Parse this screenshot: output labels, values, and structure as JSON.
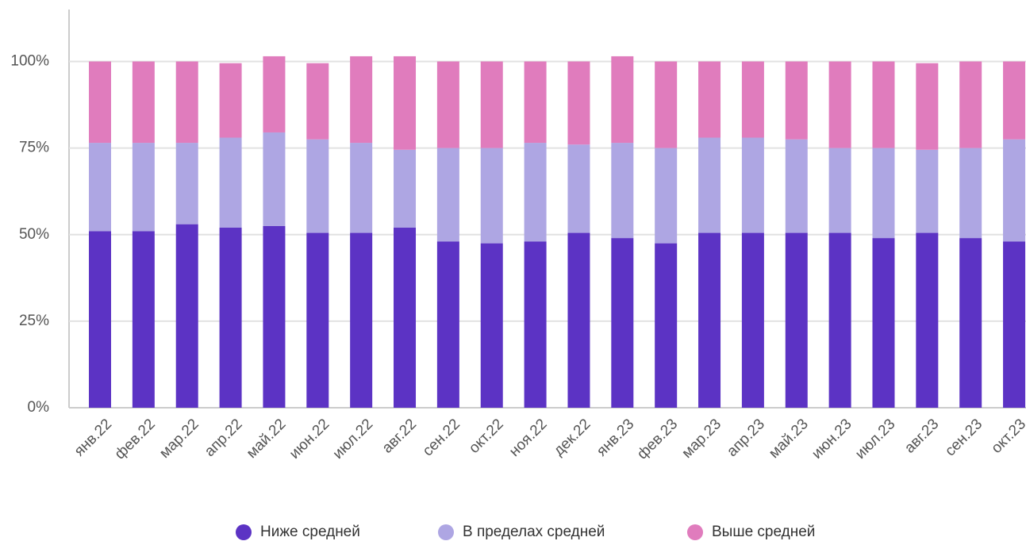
{
  "chart_data": {
    "type": "stacked_bar",
    "categories": [
      "янв.22",
      "фев.22",
      "мар.22",
      "апр.22",
      "май.22",
      "июн.22",
      "июл.22",
      "авг.22",
      "сен.22",
      "окт.22",
      "ноя.22",
      "дек.22",
      "янв.23",
      "фев.23",
      "мар.23",
      "апр.23",
      "май.23",
      "июн.23",
      "июл.23",
      "авг.23",
      "сен.23",
      "окт.23"
    ],
    "series": [
      {
        "name": "Ниже средней",
        "color": "#5c33c4",
        "values": [
          51,
          51,
          53,
          52,
          52.5,
          50.5,
          50.5,
          52,
          48,
          47.5,
          48,
          50.5,
          49,
          47.5,
          50.5,
          50.5,
          50.5,
          50.5,
          49,
          50.5,
          49,
          48
        ]
      },
      {
        "name": "В пределах средней",
        "color": "#aea6e3",
        "values": [
          25.5,
          25.5,
          23.5,
          26,
          27,
          27,
          26,
          22.5,
          27,
          27.5,
          28.5,
          25.5,
          27.5,
          27.5,
          27.5,
          27.5,
          27,
          24.5,
          26,
          24,
          26,
          29.5
        ]
      },
      {
        "name": "Выше средней",
        "color": "#e07cbd",
        "values": [
          23.5,
          23.5,
          23.5,
          21.5,
          22,
          22,
          25,
          27,
          25,
          25,
          23.5,
          24,
          25,
          25,
          22,
          22,
          22.5,
          25,
          25,
          25,
          25,
          22.5
        ]
      }
    ],
    "ylim": [
      0,
      115
    ],
    "yticks": [
      {
        "value": 0,
        "label": "0%"
      },
      {
        "value": 25,
        "label": "25%"
      },
      {
        "value": 50,
        "label": "50%"
      },
      {
        "value": 75,
        "label": "75%"
      },
      {
        "value": 100,
        "label": "100%"
      }
    ],
    "grid": true
  }
}
